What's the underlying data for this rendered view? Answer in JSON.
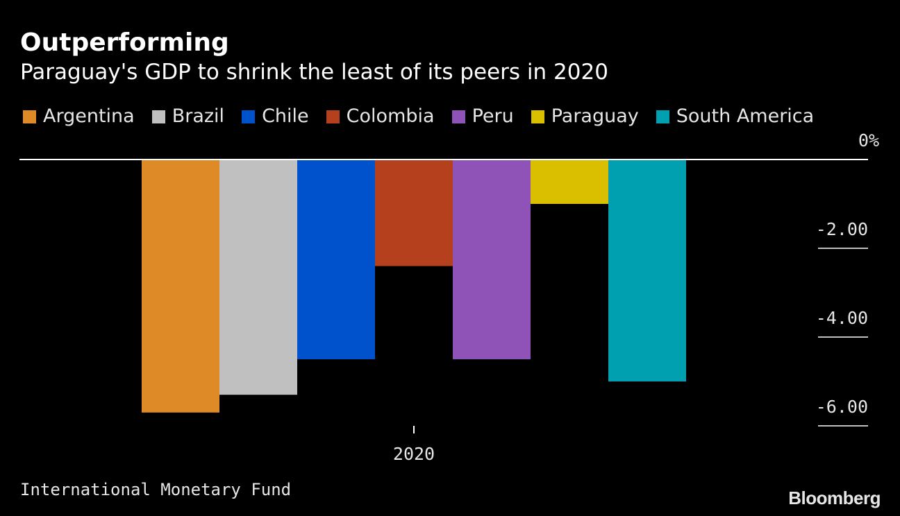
{
  "title": "Outperforming",
  "subtitle": "Paraguay's GDP to shrink the least of its peers in 2020",
  "source": "International Monetary Fund",
  "brand": "Bloomberg",
  "chart_data": {
    "type": "bar",
    "categories": [
      "2020"
    ],
    "series": [
      {
        "name": "Argentina",
        "color": "#DE8A26",
        "values": [
          -5.7
        ]
      },
      {
        "name": "Brazil",
        "color": "#C0C0C0",
        "values": [
          -5.3
        ]
      },
      {
        "name": "Chile",
        "color": "#0052CC",
        "values": [
          -4.5
        ]
      },
      {
        "name": "Colombia",
        "color": "#B5401E",
        "values": [
          -2.4
        ]
      },
      {
        "name": "Peru",
        "color": "#8F52B7",
        "values": [
          -4.5
        ]
      },
      {
        "name": "Paraguay",
        "color": "#D9BF00",
        "values": [
          -1.0
        ]
      },
      {
        "name": "South America",
        "color": "#00A0B0",
        "values": [
          -5.0
        ]
      }
    ],
    "ylim": [
      -6,
      0
    ],
    "yticks": [
      0,
      -2,
      -4,
      -6
    ],
    "ytick_labels": [
      "0%",
      "-2.00",
      "-4.00",
      "-6.00"
    ],
    "xlabel": "",
    "ylabel": "",
    "y_axis_position": "right",
    "legend_position": "top-left",
    "grid": false
  }
}
